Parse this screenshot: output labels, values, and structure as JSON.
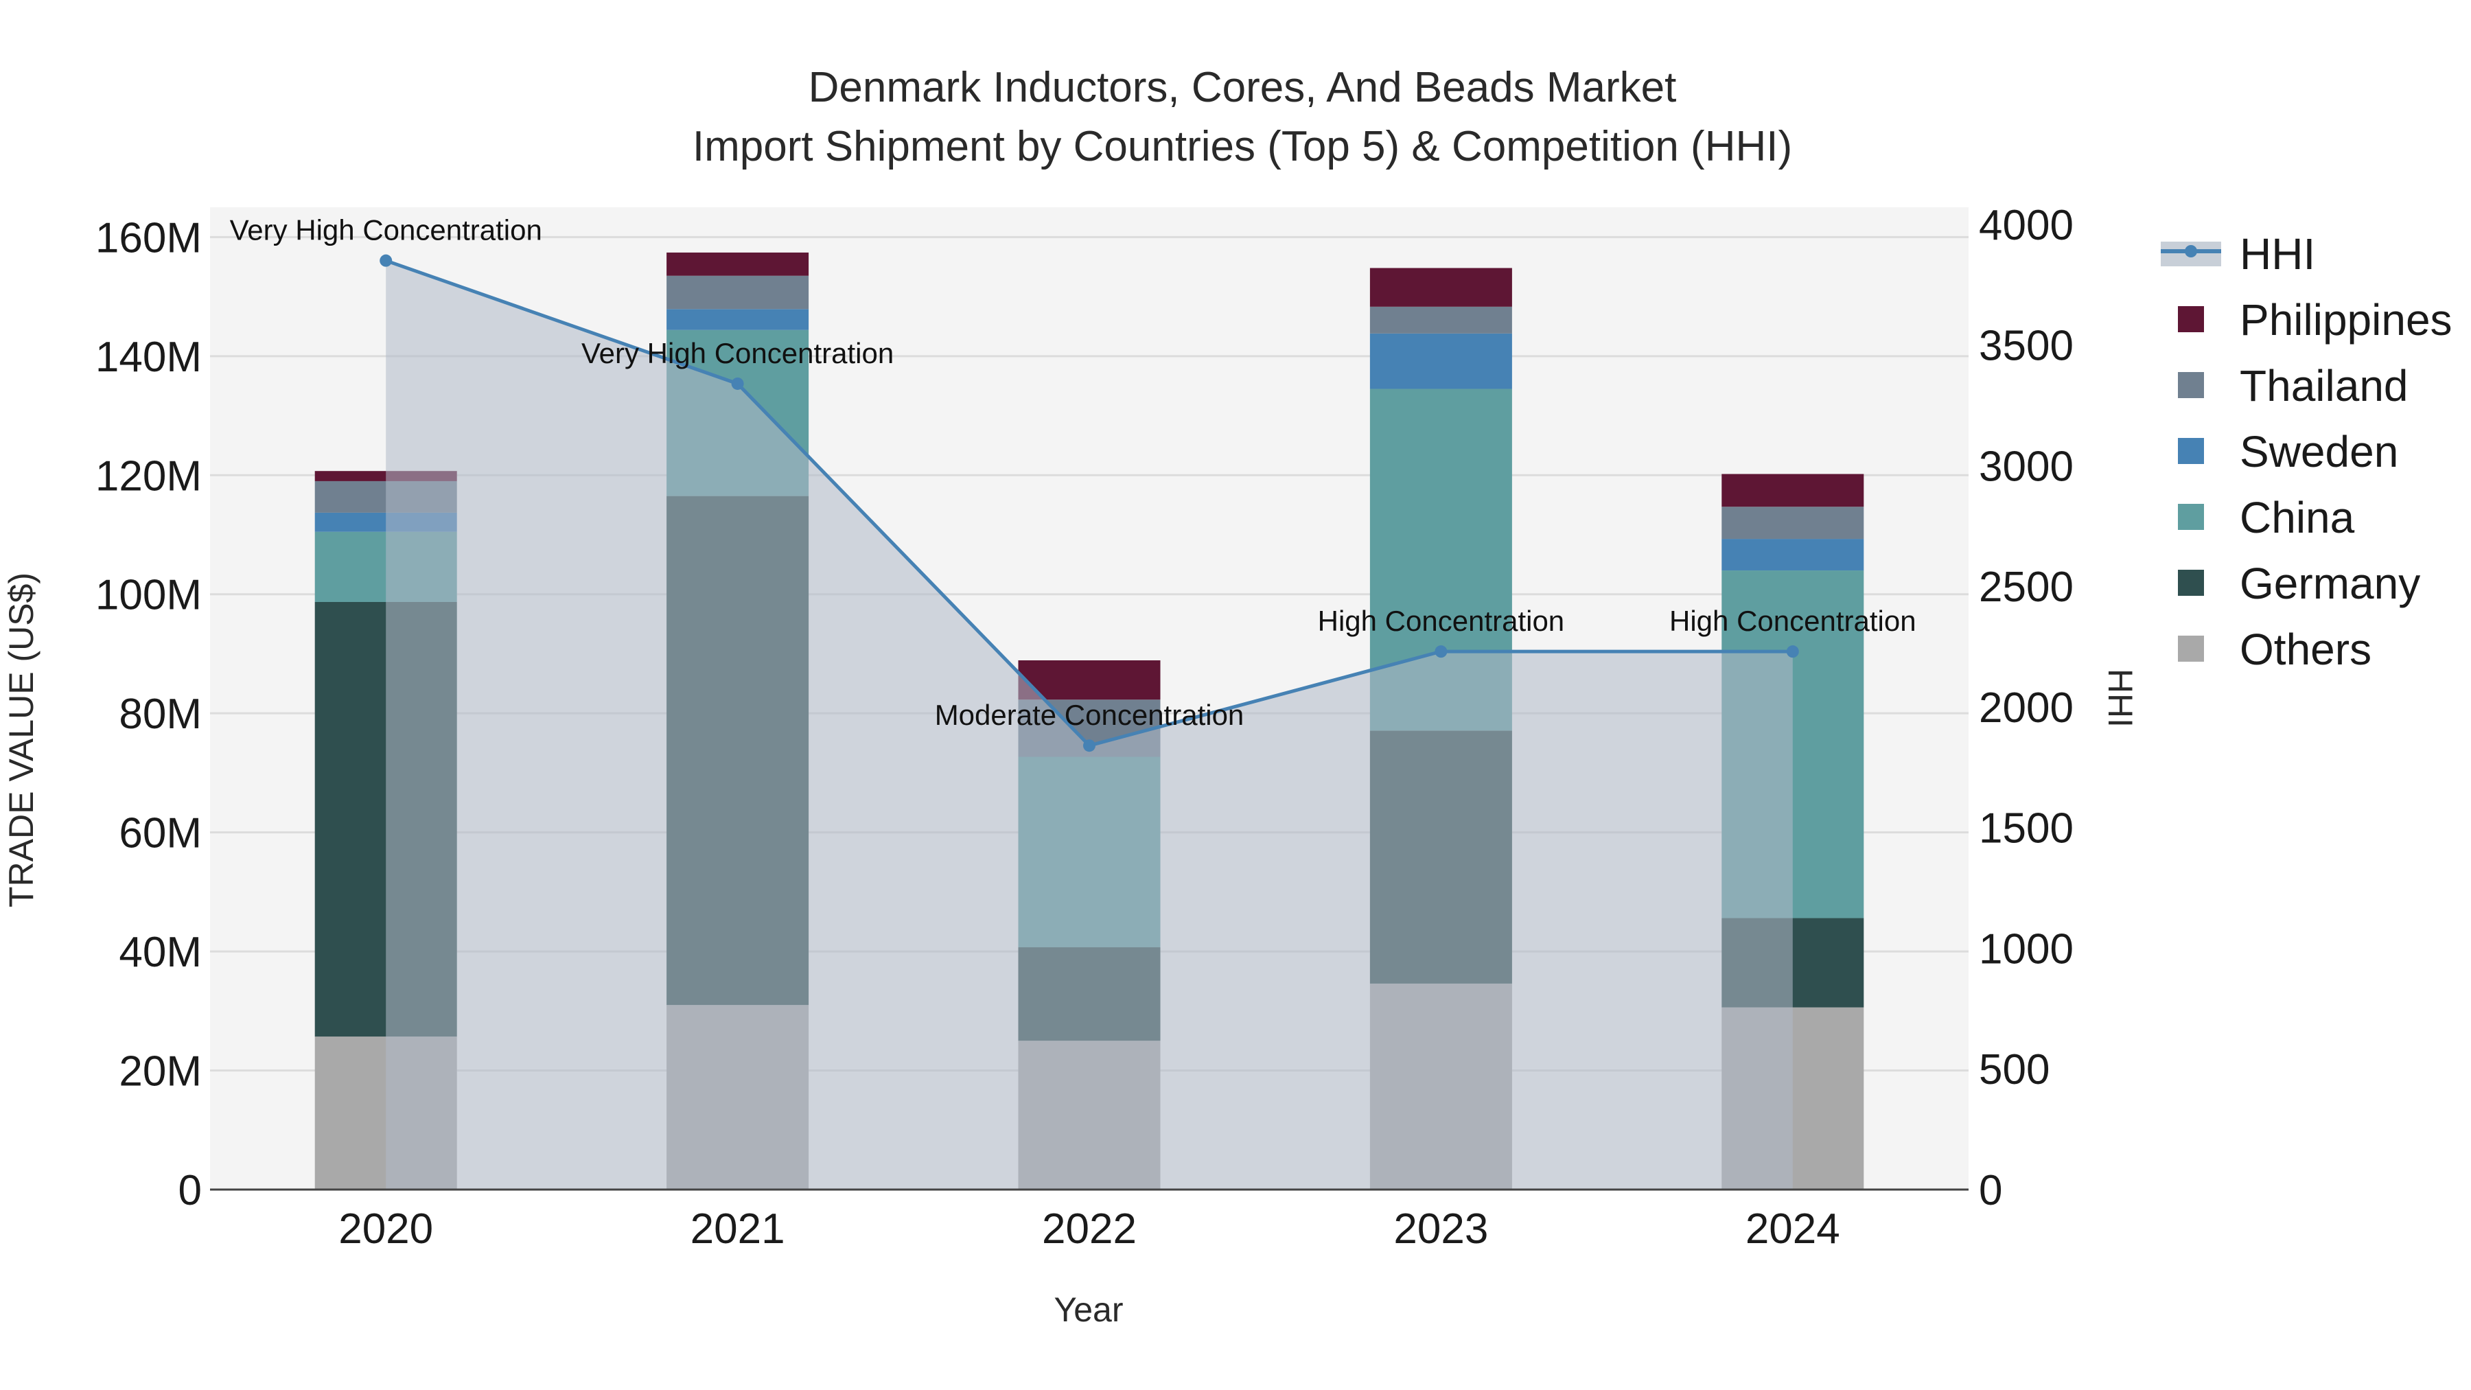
{
  "chart_data": {
    "type": "bar",
    "stacked": true,
    "title_line1": "Denmark Inductors, Cores, And Beads Market",
    "title_line2": "Import Shipment by Countries (Top 5) & Competition (HHI)",
    "xlabel": "Year",
    "ylabel": "TRADE VALUE (US$)",
    "y2label": "HHI",
    "categories": [
      "2020",
      "2021",
      "2022",
      "2023",
      "2024"
    ],
    "ylim": [
      0,
      165000000
    ],
    "y_ticks": [
      0,
      20000000,
      40000000,
      60000000,
      80000000,
      100000000,
      120000000,
      140000000,
      160000000
    ],
    "y_tick_labels": [
      "0",
      "20M",
      "40M",
      "60M",
      "80M",
      "100M",
      "120M",
      "140M",
      "160M"
    ],
    "y2lim": [
      0,
      4071
    ],
    "y2_ticks": [
      0,
      500,
      1000,
      1500,
      2000,
      2500,
      3000,
      3500,
      4000
    ],
    "y2_tick_labels": [
      "0",
      "500",
      "1000",
      "1500",
      "2000",
      "2500",
      "3000",
      "3500",
      "4000"
    ],
    "series": [
      {
        "name": "Others",
        "color": "#a9a9a9",
        "values": [
          25700000,
          31000000,
          25000000,
          34600000,
          30600000
        ]
      },
      {
        "name": "Germany",
        "color": "#2f4f4f",
        "values": [
          73000000,
          85500000,
          15700000,
          42500000,
          15000000
        ]
      },
      {
        "name": "China",
        "color": "#5f9ea0",
        "values": [
          11800000,
          27900000,
          32000000,
          57400000,
          58400000
        ]
      },
      {
        "name": "Sweden",
        "color": "#4682b4",
        "values": [
          3200000,
          3500000,
          0,
          9300000,
          5300000
        ]
      },
      {
        "name": "Thailand",
        "color": "#708090",
        "values": [
          5300000,
          5600000,
          9600000,
          4500000,
          5400000
        ]
      },
      {
        "name": "Philippines",
        "color": "#5e1634",
        "values": [
          1700000,
          3900000,
          6600000,
          6500000,
          5500000
        ]
      }
    ],
    "hhi": {
      "name": "HHI",
      "color": "#4682b4",
      "values": [
        3850,
        3340,
        1840,
        2230,
        2230
      ],
      "annotations": [
        "Very High Concentration",
        "Very High Concentration",
        "Moderate Concentration",
        "High Concentration",
        "High Concentration"
      ]
    },
    "legend": [
      "HHI",
      "Philippines",
      "Thailand",
      "Sweden",
      "China",
      "Germany",
      "Others"
    ],
    "legend_position": "top-right"
  }
}
